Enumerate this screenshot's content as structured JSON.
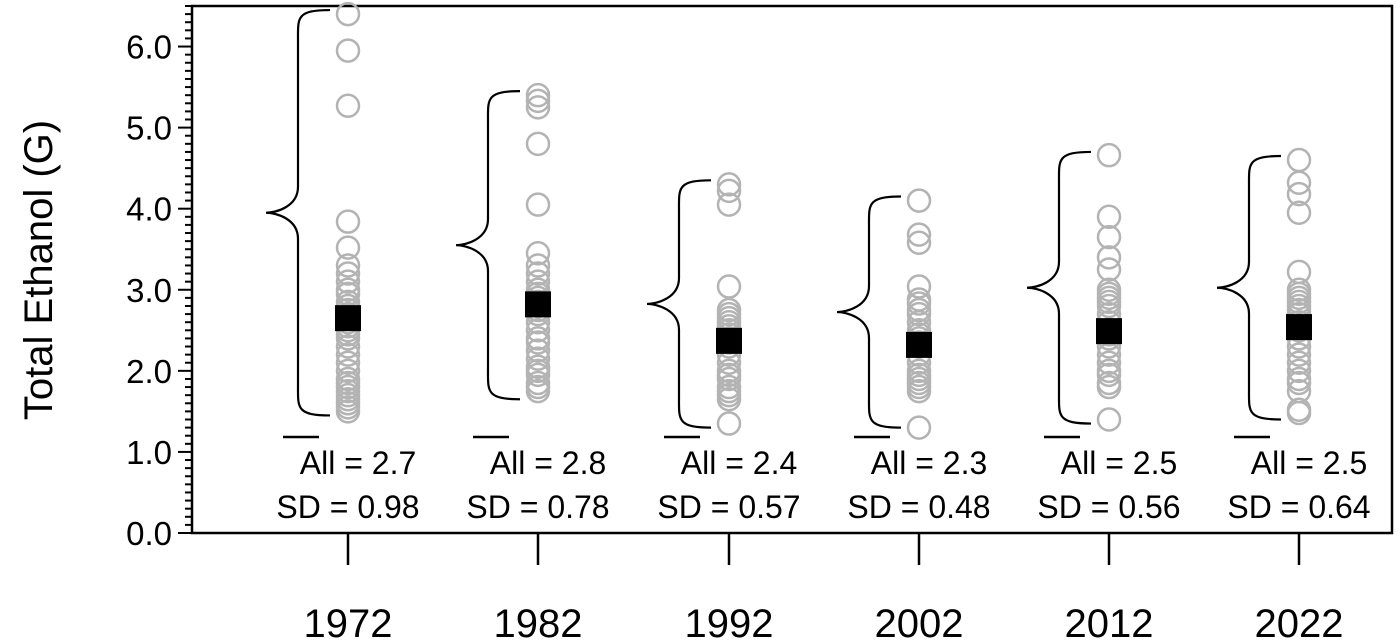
{
  "chart_data": {
    "type": "scatter",
    "ylabel": "Total Ethanol (G)",
    "xlabel": "",
    "ylim": [
      0.0,
      6.5
    ],
    "yticks": [
      "0.0",
      "1.0",
      "2.0",
      "3.0",
      "4.0",
      "5.0",
      "6.0"
    ],
    "categories": [
      "1972",
      "1982",
      "1992",
      "2002",
      "2012",
      "2022"
    ],
    "groups": [
      {
        "year": "1972",
        "mean": 2.65,
        "sd_value": 0.98,
        "range": [
          1.45,
          6.45
        ],
        "stat_mean": "All = 2.7",
        "stat_sd": "SD = 0.98",
        "values": [
          6.4,
          5.95,
          5.27,
          3.84,
          3.52,
          3.3,
          3.2,
          3.1,
          3.0,
          2.95,
          2.85,
          2.8,
          2.75,
          2.7,
          2.6,
          2.55,
          2.5,
          2.45,
          2.4,
          2.3,
          2.2,
          2.1,
          2.0,
          1.9,
          1.85,
          1.8,
          1.75,
          1.7,
          1.65,
          1.6,
          1.55,
          1.5
        ]
      },
      {
        "year": "1982",
        "mean": 2.82,
        "sd_value": 0.78,
        "range": [
          1.65,
          5.45
        ],
        "stat_mean": "All = 2.8",
        "stat_sd": "SD = 0.78",
        "values": [
          5.4,
          5.33,
          5.25,
          4.8,
          4.05,
          3.45,
          3.3,
          3.2,
          3.1,
          3.0,
          2.95,
          2.9,
          2.85,
          2.8,
          2.75,
          2.7,
          2.6,
          2.5,
          2.4,
          2.35,
          2.25,
          2.15,
          2.05,
          2.0,
          1.95,
          1.85,
          1.8,
          1.75
        ]
      },
      {
        "year": "1992",
        "mean": 2.37,
        "sd_value": 0.57,
        "range": [
          1.3,
          4.35
        ],
        "stat_mean": "All = 2.4",
        "stat_sd": "SD = 0.57",
        "values": [
          4.3,
          4.22,
          4.05,
          3.04,
          2.75,
          2.7,
          2.65,
          2.6,
          2.55,
          2.5,
          2.45,
          2.4,
          2.35,
          2.3,
          2.2,
          2.1,
          2.0,
          1.95,
          1.9,
          1.8,
          1.75,
          1.7,
          1.65,
          1.35
        ]
      },
      {
        "year": "2002",
        "mean": 2.32,
        "sd_value": 0.48,
        "range": [
          1.3,
          4.15
        ],
        "stat_mean": "All = 2.3",
        "stat_sd": "SD = 0.48",
        "values": [
          4.1,
          3.68,
          3.58,
          3.04,
          2.88,
          2.83,
          2.75,
          2.7,
          2.6,
          2.5,
          2.45,
          2.4,
          2.35,
          2.3,
          2.2,
          2.1,
          2.0,
          1.95,
          1.9,
          1.85,
          1.8,
          1.75,
          1.3
        ]
      },
      {
        "year": "2012",
        "mean": 2.49,
        "sd_value": 0.56,
        "range": [
          1.35,
          4.7
        ],
        "stat_mean": "All = 2.5",
        "stat_sd": "SD = 0.56",
        "values": [
          4.66,
          3.9,
          3.65,
          3.4,
          3.25,
          3.0,
          2.95,
          2.9,
          2.85,
          2.8,
          2.7,
          2.6,
          2.5,
          2.45,
          2.4,
          2.3,
          2.2,
          2.1,
          2.0,
          1.95,
          1.85,
          1.8,
          1.4
        ]
      },
      {
        "year": "2022",
        "mean": 2.54,
        "sd_value": 0.64,
        "range": [
          1.4,
          4.65
        ],
        "stat_mean": "All = 2.5",
        "stat_sd": "SD = 0.64",
        "values": [
          4.6,
          4.32,
          4.18,
          3.95,
          3.22,
          3.0,
          2.95,
          2.9,
          2.85,
          2.8,
          2.75,
          2.7,
          2.6,
          2.55,
          2.5,
          2.4,
          2.3,
          2.2,
          2.1,
          2.0,
          1.9,
          1.85,
          1.75,
          1.52,
          1.48
        ]
      }
    ],
    "colors": {
      "points": "#b3b3b3",
      "mean_marker": "#000000",
      "axes": "#000000"
    }
  }
}
